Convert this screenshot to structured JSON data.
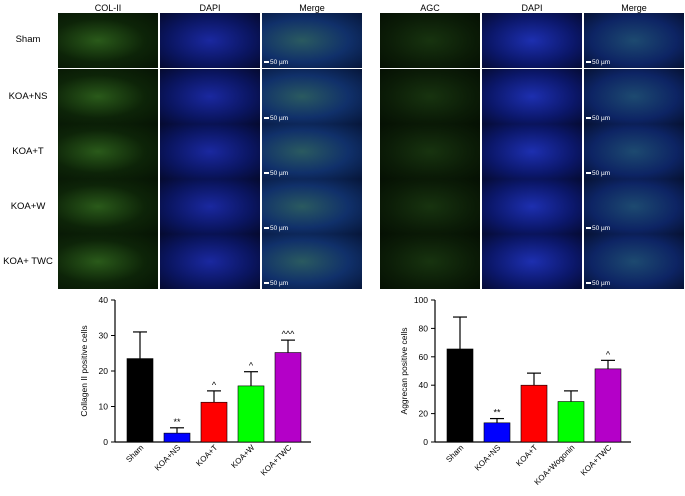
{
  "left_panel": {
    "columns": [
      "COL-II",
      "DAPI",
      "Merge"
    ],
    "rows": [
      "Sham",
      "KOA+NS",
      "KOA+T",
      "KOA+W",
      "KOA+ TWC"
    ],
    "scale_label": "50 µm"
  },
  "right_panel": {
    "columns": [
      "AGC",
      "DAPI",
      "Merge"
    ],
    "scale_label": "50 µm"
  },
  "colors": {
    "black": "#000000",
    "blue": "#0000ff",
    "red": "#ff0000",
    "green": "#00ff00",
    "purple": "#b400c8"
  },
  "chart_data": [
    {
      "type": "bar",
      "ylabel": "Collagen II positive cells",
      "ylim": [
        0,
        40
      ],
      "yticks": [
        0,
        10,
        20,
        30,
        40
      ],
      "categories": [
        "Sham",
        "KOA+NS",
        "KOA+T",
        "KOA+W",
        "KOA+TWC"
      ],
      "values": [
        23.5,
        2.5,
        11.2,
        15.8,
        25.2
      ],
      "errors": [
        7.5,
        1.5,
        3.2,
        4.0,
        3.5
      ],
      "annotations": [
        "",
        "**",
        "^",
        "^",
        "^^^"
      ],
      "bar_colors": [
        "#000000",
        "#0000ff",
        "#ff0000",
        "#00ff00",
        "#b400c8"
      ]
    },
    {
      "type": "bar",
      "ylabel": "Aggrecan positive cells",
      "ylim": [
        0,
        100
      ],
      "yticks": [
        0,
        20,
        40,
        60,
        80,
        100
      ],
      "categories": [
        "Sham",
        "KOA+NS",
        "KOA+T",
        "KOA+Wogonin",
        "KOA+TWC"
      ],
      "values": [
        65.5,
        13.5,
        40.0,
        28.5,
        51.5
      ],
      "errors": [
        22.5,
        3.0,
        8.5,
        7.5,
        6.0
      ],
      "annotations": [
        "",
        "**",
        "",
        "",
        "^"
      ],
      "bar_colors": [
        "#000000",
        "#0000ff",
        "#ff0000",
        "#00ff00",
        "#b400c8"
      ]
    }
  ]
}
